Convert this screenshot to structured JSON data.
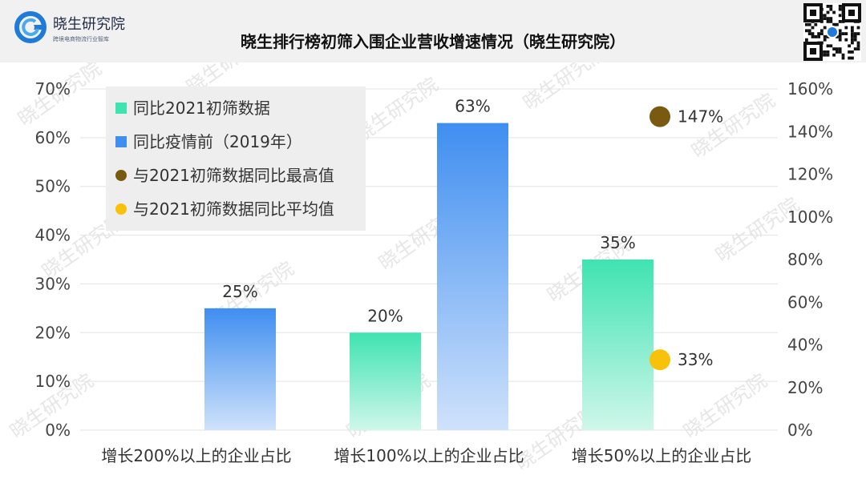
{
  "brand": {
    "name": "晓生研究院",
    "tagline": "跨境电商物流行业智库",
    "watermark": "晓生研究院"
  },
  "title": "晓生排行榜初筛入围企业营收增速情况（晓生研究院）",
  "chart_data": {
    "type": "bar",
    "categories": [
      "增长200%以上的企业占比",
      "增长100%以上的企业占比",
      "增长50%以上的企业占比"
    ],
    "series": [
      {
        "name": "同比2021初筛数据",
        "axis": "left",
        "values": [
          null,
          20,
          35
        ],
        "labels": [
          "",
          "20%",
          "35%"
        ],
        "color": "#3fe3b1"
      },
      {
        "name": "同比疫情前（2019年）",
        "axis": "left",
        "values": [
          25,
          63,
          null
        ],
        "labels": [
          "25%",
          "63%",
          ""
        ],
        "color": "#3f8ef0"
      },
      {
        "name": "与2021初筛数据同比最高值",
        "axis": "right",
        "type": "scatter",
        "values": [
          null,
          null,
          147
        ],
        "labels": [
          "",
          "",
          "147%"
        ],
        "color": "#7a5a10"
      },
      {
        "name": "与2021初筛数据同比平均值",
        "axis": "right",
        "type": "scatter",
        "values": [
          null,
          null,
          33
        ],
        "labels": [
          "",
          "",
          "33%"
        ],
        "color": "#f8c20a"
      }
    ],
    "y_left": {
      "min": 0,
      "max": 70,
      "ticks": [
        "0%",
        "10%",
        "20%",
        "30%",
        "40%",
        "50%",
        "60%",
        "70%"
      ]
    },
    "y_right": {
      "min": 0,
      "max": 160,
      "ticks": [
        "0%",
        "20%",
        "40%",
        "60%",
        "80%",
        "100%",
        "120%",
        "140%",
        "160%"
      ]
    },
    "grid": true,
    "legend_position": "top-left"
  }
}
